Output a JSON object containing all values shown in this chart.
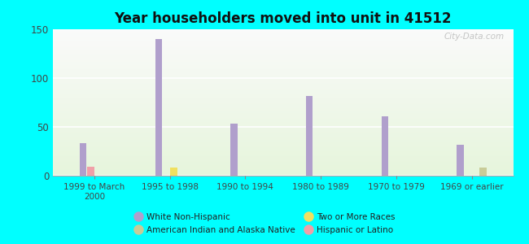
{
  "title": "Year householders moved into unit in 41512",
  "background_color": "#00FFFF",
  "categories": [
    "1999 to March\n2000",
    "1995 to 1998",
    "1990 to 1994",
    "1980 to 1989",
    "1970 to 1979",
    "1969 or earlier"
  ],
  "series": {
    "White Non-Hispanic": {
      "color": "#b09fcc",
      "values": [
        33,
        140,
        53,
        82,
        61,
        32
      ]
    },
    "Hispanic or Latino": {
      "color": "#f0a0a8",
      "values": [
        9,
        0,
        0,
        0,
        0,
        0
      ]
    },
    "Two or More Races": {
      "color": "#f0e060",
      "values": [
        0,
        8,
        0,
        0,
        0,
        0
      ]
    },
    "American Indian and Alaska Native": {
      "color": "#c8cc98",
      "values": [
        0,
        0,
        0,
        0,
        0,
        8
      ]
    }
  },
  "ylim": [
    0,
    150
  ],
  "yticks": [
    0,
    50,
    100,
    150
  ],
  "bar_width": 0.1,
  "watermark": "City-Data.com",
  "legend_order": [
    "White Non-Hispanic",
    "American Indian and Alaska Native",
    "Two or More Races",
    "Hispanic or Latino"
  ]
}
